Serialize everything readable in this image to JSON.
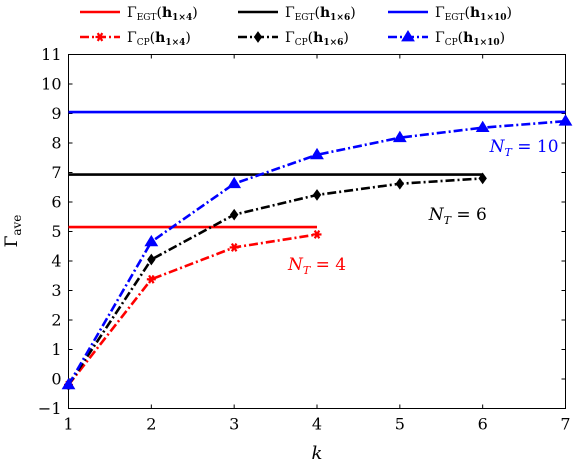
{
  "chart_data": {
    "type": "line",
    "xlabel": "k",
    "ylabel": "Γ_ave",
    "xlim": [
      1,
      7
    ],
    "ylim": [
      -1,
      11
    ],
    "x_ticks": [
      1,
      2,
      3,
      4,
      5,
      6,
      7
    ],
    "y_ticks": [
      -1,
      0,
      1,
      2,
      3,
      4,
      5,
      6,
      7,
      8,
      9,
      10,
      11
    ],
    "grid": false,
    "legend_position": "top, two rows",
    "series": [
      {
        "name": "Γ_EGT(h_1×4)",
        "color": "#ff0000",
        "style": "solid",
        "marker": "none",
        "x": [
          1,
          4
        ],
        "y": [
          5.15,
          5.15
        ]
      },
      {
        "name": "Γ_EGT(h_1×6)",
        "color": "#000000",
        "style": "solid",
        "marker": "none",
        "x": [
          1,
          6
        ],
        "y": [
          6.93,
          6.93
        ]
      },
      {
        "name": "Γ_EGT(h_1×10)",
        "color": "#0000ff",
        "style": "solid",
        "marker": "none",
        "x": [
          1,
          7
        ],
        "y": [
          9.05,
          9.05
        ]
      },
      {
        "name": "Γ_CP(h_1×4)",
        "color": "#ff0000",
        "style": "dashdot",
        "marker": "star",
        "x": [
          1,
          2,
          3,
          4
        ],
        "y": [
          -0.2,
          3.38,
          4.46,
          4.9
        ]
      },
      {
        "name": "Γ_CP(h_1×6)",
        "color": "#000000",
        "style": "dashdot",
        "marker": "diamond",
        "x": [
          1,
          2,
          3,
          4,
          5,
          6
        ],
        "y": [
          -0.2,
          4.05,
          5.57,
          6.24,
          6.62,
          6.8
        ]
      },
      {
        "name": "Γ_CP(h_1×10)",
        "color": "#0000ff",
        "style": "dashdot",
        "marker": "triangle",
        "x": [
          1,
          2,
          3,
          4,
          5,
          6,
          7
        ],
        "y": [
          -0.2,
          4.65,
          6.62,
          7.6,
          8.18,
          8.52,
          8.74
        ]
      }
    ],
    "annotations": [
      {
        "text": "N_T = 4",
        "color": "#ff0000",
        "x": 4.0,
        "y": 3.9
      },
      {
        "text": "N_T = 6",
        "color": "#000000",
        "x": 5.7,
        "y": 5.6
      },
      {
        "text": "N_T = 10",
        "color": "#0000ff",
        "x": 6.5,
        "y": 7.9
      }
    ]
  }
}
